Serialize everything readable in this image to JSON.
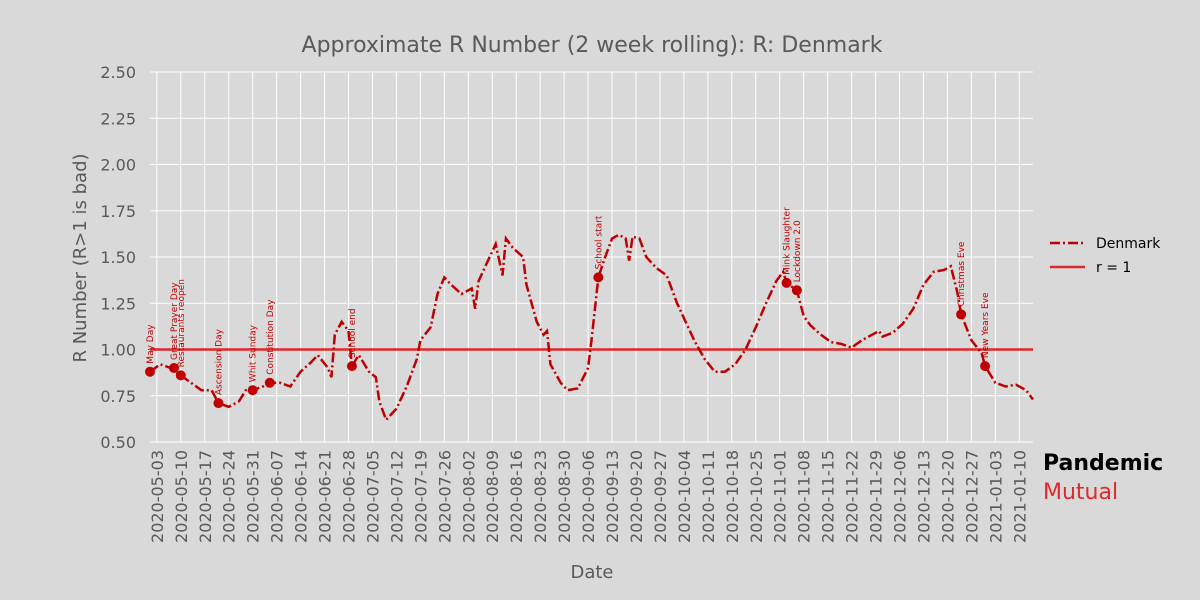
{
  "chart_data": {
    "type": "line",
    "title": "Approximate R Number (2 week rolling): R: Denmark",
    "x_label": "Date",
    "y_label": "R Number (R>1 is bad)",
    "xlim": [
      "2020-05-01",
      "2021-01-14"
    ],
    "xticks": [
      "2020-05-03",
      "2020-05-10",
      "2020-05-17",
      "2020-05-24",
      "2020-05-31",
      "2020-06-07",
      "2020-06-14",
      "2020-06-21",
      "2020-06-28",
      "2020-07-05",
      "2020-07-12",
      "2020-07-19",
      "2020-07-26",
      "2020-08-02",
      "2020-08-09",
      "2020-08-16",
      "2020-08-23",
      "2020-08-30",
      "2020-09-06",
      "2020-09-13",
      "2020-09-20",
      "2020-09-27",
      "2020-10-04",
      "2020-10-11",
      "2020-10-18",
      "2020-10-25",
      "2020-11-01",
      "2020-11-08",
      "2020-11-15",
      "2020-11-22",
      "2020-11-29",
      "2020-12-06",
      "2020-12-13",
      "2020-12-20",
      "2020-12-27",
      "2021-01-03",
      "2021-01-10"
    ],
    "ylim": [
      0.5,
      2.5
    ],
    "yticks": [
      {
        "value": 0.5,
        "label": "0.50"
      },
      {
        "value": 0.75,
        "label": "0.75"
      },
      {
        "value": 1,
        "label": "1.00"
      },
      {
        "value": 1.25,
        "label": "1.25"
      },
      {
        "value": 1.5,
        "label": "1.50"
      },
      {
        "value": 1.75,
        "label": "1.75"
      },
      {
        "value": 2,
        "label": "2.00"
      },
      {
        "value": 2.25,
        "label": "2.25"
      },
      {
        "value": 2.5,
        "label": "2.50"
      }
    ],
    "x": [
      "2020-05-01",
      "2020-05-04",
      "2020-05-07",
      "2020-05-10",
      "2020-05-13",
      "2020-05-16",
      "2020-05-19",
      "2020-05-21",
      "2020-05-24",
      "2020-05-27",
      "2020-05-29",
      "2020-05-31",
      "2020-06-03",
      "2020-06-05",
      "2020-06-08",
      "2020-06-11",
      "2020-06-14",
      "2020-06-17",
      "2020-06-19",
      "2020-06-22",
      "2020-06-23",
      "2020-06-24",
      "2020-06-26",
      "2020-06-28",
      "2020-06-29",
      "2020-07-01",
      "2020-07-04",
      "2020-07-06",
      "2020-07-07",
      "2020-07-09",
      "2020-07-12",
      "2020-07-15",
      "2020-07-18",
      "2020-07-19",
      "2020-07-22",
      "2020-07-24",
      "2020-07-26",
      "2020-07-28",
      "2020-07-31",
      "2020-08-03",
      "2020-08-04",
      "2020-08-05",
      "2020-08-07",
      "2020-08-10",
      "2020-08-12",
      "2020-08-13",
      "2020-08-15",
      "2020-08-18",
      "2020-08-19",
      "2020-08-22",
      "2020-08-24",
      "2020-08-25",
      "2020-08-26",
      "2020-08-29",
      "2020-08-31",
      "2020-09-03",
      "2020-09-06",
      "2020-09-07",
      "2020-09-09",
      "2020-09-11",
      "2020-09-13",
      "2020-09-15",
      "2020-09-17",
      "2020-09-18",
      "2020-09-19",
      "2020-09-21",
      "2020-09-23",
      "2020-09-26",
      "2020-09-29",
      "2020-10-02",
      "2020-10-05",
      "2020-10-07",
      "2020-10-10",
      "2020-10-13",
      "2020-10-16",
      "2020-10-19",
      "2020-10-22",
      "2020-10-25",
      "2020-10-28",
      "2020-10-31",
      "2020-11-02",
      "2020-11-03",
      "2020-11-06",
      "2020-11-08",
      "2020-11-10",
      "2020-11-13",
      "2020-11-16",
      "2020-11-19",
      "2020-11-22",
      "2020-11-25",
      "2020-11-28",
      "2020-11-30",
      "2020-12-01",
      "2020-12-04",
      "2020-12-07",
      "2020-12-10",
      "2020-12-13",
      "2020-12-16",
      "2020-12-19",
      "2020-12-21",
      "2020-12-23",
      "2020-12-24",
      "2020-12-27",
      "2020-12-30",
      "2020-12-31",
      "2021-01-03",
      "2021-01-06",
      "2021-01-09",
      "2021-01-12",
      "2021-01-14"
    ],
    "series": [
      {
        "name": "Denmark",
        "color": "#c00000",
        "values": [
          0.88,
          0.92,
          0.9,
          0.86,
          0.82,
          0.78,
          0.78,
          0.71,
          0.69,
          0.72,
          0.78,
          0.78,
          0.8,
          0.82,
          0.82,
          0.8,
          0.88,
          0.93,
          0.97,
          0.9,
          0.85,
          1.08,
          1.15,
          1.1,
          0.91,
          0.97,
          0.88,
          0.85,
          0.72,
          0.62,
          0.68,
          0.8,
          0.95,
          1.05,
          1.12,
          1.3,
          1.39,
          1.35,
          1.3,
          1.33,
          1.22,
          1.37,
          1.45,
          1.57,
          1.4,
          1.6,
          1.55,
          1.5,
          1.35,
          1.15,
          1.08,
          1.1,
          0.92,
          0.82,
          0.78,
          0.79,
          0.9,
          1.05,
          1.39,
          1.5,
          1.6,
          1.62,
          1.6,
          1.48,
          1.61,
          1.6,
          1.5,
          1.44,
          1.4,
          1.25,
          1.13,
          1.05,
          0.95,
          0.88,
          0.88,
          0.92,
          1.0,
          1.12,
          1.25,
          1.37,
          1.42,
          1.36,
          1.32,
          1.18,
          1.13,
          1.08,
          1.04,
          1.03,
          1.01,
          1.05,
          1.08,
          1.1,
          1.07,
          1.09,
          1.14,
          1.22,
          1.35,
          1.42,
          1.43,
          1.45,
          1.3,
          1.19,
          1.05,
          0.98,
          0.91,
          0.82,
          0.8,
          0.81,
          0.78,
          0.73
        ]
      }
    ],
    "reference_lines": [
      {
        "name": "r = 1",
        "value": 1,
        "color": "#e0282a"
      }
    ],
    "annotations": [
      {
        "date": "2020-05-01",
        "value": 0.88,
        "label": "May Day"
      },
      {
        "date": "2020-05-08",
        "value": 0.9,
        "label": "Great Prayer Day"
      },
      {
        "date": "2020-05-10",
        "value": 0.86,
        "label": "Restaurants reopen"
      },
      {
        "date": "2020-05-21",
        "value": 0.71,
        "label": "Ascension Day"
      },
      {
        "date": "2020-05-31",
        "value": 0.78,
        "label": "Whit Sunday"
      },
      {
        "date": "2020-06-05",
        "value": 0.82,
        "label": "Constitution Day"
      },
      {
        "date": "2020-06-29",
        "value": 0.91,
        "label": "School end"
      },
      {
        "date": "2020-09-09",
        "value": 1.39,
        "label": "School start"
      },
      {
        "date": "2020-11-03",
        "value": 1.36,
        "label": "Mink Slaughter"
      },
      {
        "date": "2020-11-06",
        "value": 1.32,
        "label": "Lockdown 2.0"
      },
      {
        "date": "2020-12-24",
        "value": 1.19,
        "label": "Christmas Eve"
      },
      {
        "date": "2020-12-31",
        "value": 0.91,
        "label": "New Years Eve"
      }
    ],
    "brand": [
      "Pandemic",
      "Mutual"
    ]
  }
}
